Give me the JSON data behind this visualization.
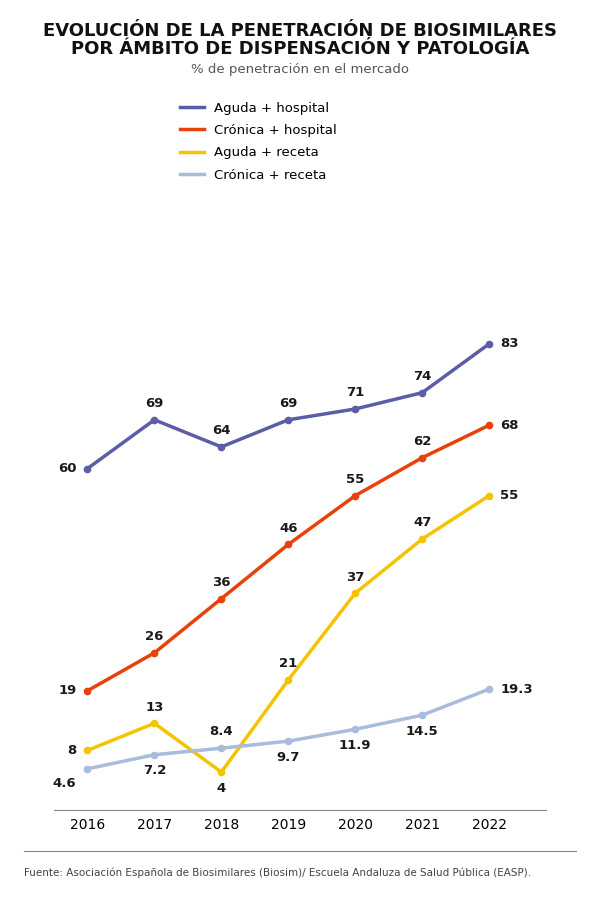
{
  "title_line1": "EVOLUCIÓN DE LA PENETRACIÓN DE BIOSIMILARES",
  "title_line2": "POR ÁMBITO DE DISPENSACIÓN Y PATOLOGÍA",
  "subtitle": "% de penetración en el mercado",
  "source": "Fuente: Asociación Española de Biosimilares (Biosim)/ Escuela Andaluza de Salud Pública (EASP).",
  "years": [
    2016,
    2017,
    2018,
    2019,
    2020,
    2021,
    2022
  ],
  "series": {
    "Aguda + hospital": {
      "values": [
        60,
        69,
        64,
        69,
        71,
        74,
        83
      ],
      "color": "#5B5EA6",
      "linewidth": 2.5
    },
    "Crónica + hospital": {
      "values": [
        19,
        26,
        36,
        46,
        55,
        62,
        68
      ],
      "color": "#E8420A",
      "linewidth": 2.5
    },
    "Aguda + receta": {
      "values": [
        8,
        13,
        4,
        21,
        37,
        47,
        55
      ],
      "color": "#F5C400",
      "linewidth": 2.5
    },
    "Crónica + receta": {
      "values": [
        4.6,
        7.2,
        8.4,
        9.7,
        11.9,
        14.5,
        19.3
      ],
      "color": "#A8BCDC",
      "linewidth": 2.5
    }
  },
  "background_color": "#FFFFFF",
  "title_fontsize": 13,
  "subtitle_fontsize": 9.5,
  "label_fontsize": 9.5,
  "legend_fontsize": 9.5,
  "source_fontsize": 7.5,
  "tick_fontsize": 10
}
